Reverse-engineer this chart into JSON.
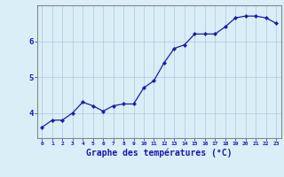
{
  "x": [
    0,
    1,
    2,
    3,
    4,
    5,
    6,
    7,
    8,
    9,
    10,
    11,
    12,
    13,
    14,
    15,
    16,
    17,
    18,
    19,
    20,
    21,
    22,
    23
  ],
  "y": [
    3.6,
    3.8,
    3.8,
    4.0,
    4.3,
    4.2,
    4.05,
    4.2,
    4.25,
    4.25,
    4.7,
    4.9,
    5.4,
    5.8,
    5.9,
    6.2,
    6.2,
    6.2,
    6.4,
    6.65,
    6.7,
    6.7,
    6.65,
    6.5
  ],
  "line_color": "#1a1aaa",
  "marker": "D",
  "marker_size": 2.2,
  "bg_color": "#d9eef7",
  "grid_color": "#b0c8d8",
  "axis_color": "#1a1aaa",
  "xlabel": "Graphe des températures (°C)",
  "xlabel_fontsize": 7,
  "ylabel_ticks": [
    4,
    5,
    6
  ],
  "xlim": [
    -0.5,
    23.5
  ],
  "ylim": [
    3.3,
    7.0
  ],
  "ytick_labels": [
    "4",
    "5",
    "6"
  ],
  "xtick_labels": [
    "0",
    "1",
    "2",
    "3",
    "4",
    "5",
    "6",
    "7",
    "8",
    "9",
    "10",
    "11",
    "12",
    "13",
    "14",
    "15",
    "16",
    "17",
    "18",
    "19",
    "20",
    "21",
    "22",
    "23"
  ]
}
